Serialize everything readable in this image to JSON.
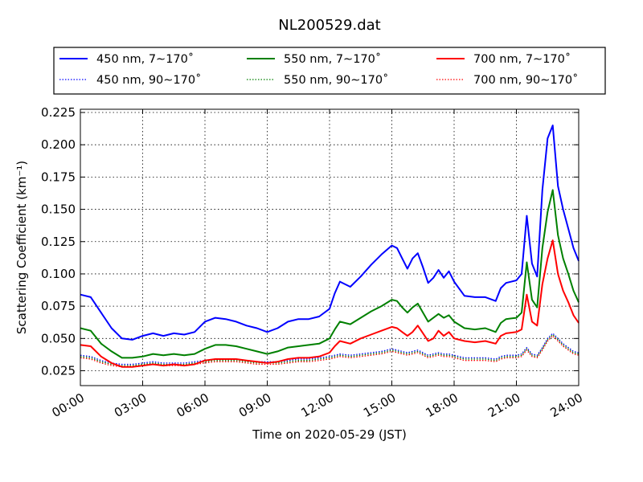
{
  "chart_data": {
    "type": "line",
    "title": "NL200529.dat",
    "xlabel": "Time on 2020-05-29 (JST)",
    "ylabel": "Scattering Coefficient (km⁻¹)",
    "x_unit": "hour",
    "xlim": [
      0,
      24
    ],
    "ylim": [
      0.0135,
      0.2275
    ],
    "x_ticks": [
      0,
      3,
      6,
      9,
      12,
      15,
      18,
      21,
      24
    ],
    "x_tick_labels": [
      "00:00",
      "03:00",
      "06:00",
      "09:00",
      "12:00",
      "15:00",
      "18:00",
      "21:00",
      "24:00"
    ],
    "y_ticks": [
      0.025,
      0.05,
      0.075,
      0.1,
      0.125,
      0.15,
      0.175,
      0.2,
      0.225
    ],
    "y_tick_labels": [
      "0.025",
      "0.050",
      "0.075",
      "0.100",
      "0.125",
      "0.150",
      "0.175",
      "0.200",
      "0.225"
    ],
    "grid": true,
    "legend_position": "top",
    "x": [
      0,
      0.5,
      1,
      1.5,
      2,
      2.5,
      3,
      3.5,
      4,
      4.5,
      5,
      5.5,
      6,
      6.5,
      7,
      7.5,
      8,
      8.5,
      9,
      9.5,
      10,
      10.5,
      11,
      11.5,
      12,
      12.25,
      12.5,
      13,
      13.5,
      14,
      14.5,
      15,
      15.25,
      15.5,
      15.75,
      16,
      16.25,
      16.5,
      16.75,
      17,
      17.25,
      17.5,
      17.75,
      18,
      18.5,
      19,
      19.5,
      20,
      20.25,
      20.5,
      21,
      21.25,
      21.5,
      21.75,
      22,
      22.25,
      22.5,
      22.75,
      23,
      23.25,
      23.5,
      23.75,
      24
    ],
    "series": [
      {
        "name": "450 nm, 7∼170˚",
        "color": "#0000ff",
        "style": "solid",
        "values": [
          0.084,
          0.082,
          0.07,
          0.058,
          0.05,
          0.049,
          0.052,
          0.054,
          0.052,
          0.054,
          0.053,
          0.055,
          0.063,
          0.066,
          0.065,
          0.063,
          0.06,
          0.058,
          0.055,
          0.058,
          0.063,
          0.065,
          0.065,
          0.067,
          0.073,
          0.085,
          0.094,
          0.09,
          0.098,
          0.107,
          0.115,
          0.122,
          0.12,
          0.112,
          0.104,
          0.112,
          0.116,
          0.105,
          0.093,
          0.097,
          0.103,
          0.097,
          0.102,
          0.094,
          0.083,
          0.082,
          0.082,
          0.079,
          0.089,
          0.093,
          0.095,
          0.1,
          0.145,
          0.108,
          0.098,
          0.165,
          0.205,
          0.215,
          0.168,
          0.15,
          0.135,
          0.12,
          0.11
        ]
      },
      {
        "name": "450 nm, 90∼170˚",
        "color": "#0000ff",
        "style": "dotted",
        "values": [
          0.037,
          0.036,
          0.033,
          0.031,
          0.03,
          0.03,
          0.031,
          0.032,
          0.031,
          0.031,
          0.031,
          0.032,
          0.033,
          0.034,
          0.034,
          0.034,
          0.033,
          0.032,
          0.032,
          0.032,
          0.033,
          0.034,
          0.034,
          0.035,
          0.036,
          0.037,
          0.038,
          0.037,
          0.038,
          0.039,
          0.04,
          0.042,
          0.041,
          0.04,
          0.039,
          0.04,
          0.041,
          0.039,
          0.037,
          0.038,
          0.039,
          0.038,
          0.038,
          0.037,
          0.035,
          0.035,
          0.035,
          0.034,
          0.036,
          0.037,
          0.037,
          0.038,
          0.043,
          0.038,
          0.037,
          0.043,
          0.05,
          0.054,
          0.05,
          0.046,
          0.043,
          0.04,
          0.039
        ]
      },
      {
        "name": "550 nm, 7∼170˚",
        "color": "#008000",
        "style": "solid",
        "values": [
          0.058,
          0.056,
          0.046,
          0.04,
          0.035,
          0.035,
          0.036,
          0.038,
          0.037,
          0.038,
          0.037,
          0.038,
          0.042,
          0.045,
          0.045,
          0.044,
          0.042,
          0.04,
          0.038,
          0.04,
          0.043,
          0.044,
          0.045,
          0.046,
          0.05,
          0.057,
          0.063,
          0.061,
          0.066,
          0.071,
          0.075,
          0.08,
          0.079,
          0.074,
          0.07,
          0.074,
          0.077,
          0.07,
          0.063,
          0.066,
          0.069,
          0.066,
          0.068,
          0.063,
          0.058,
          0.057,
          0.058,
          0.055,
          0.062,
          0.065,
          0.066,
          0.07,
          0.109,
          0.08,
          0.074,
          0.12,
          0.148,
          0.165,
          0.13,
          0.112,
          0.1,
          0.087,
          0.078
        ]
      },
      {
        "name": "550 nm, 90∼170˚",
        "color": "#008000",
        "style": "dotted",
        "values": [
          0.036,
          0.035,
          0.032,
          0.03,
          0.029,
          0.029,
          0.03,
          0.031,
          0.03,
          0.03,
          0.03,
          0.031,
          0.032,
          0.033,
          0.033,
          0.033,
          0.032,
          0.031,
          0.031,
          0.031,
          0.032,
          0.033,
          0.033,
          0.034,
          0.035,
          0.036,
          0.037,
          0.036,
          0.037,
          0.038,
          0.039,
          0.041,
          0.04,
          0.039,
          0.038,
          0.039,
          0.04,
          0.038,
          0.036,
          0.037,
          0.038,
          0.037,
          0.037,
          0.036,
          0.034,
          0.034,
          0.034,
          0.033,
          0.035,
          0.036,
          0.036,
          0.037,
          0.042,
          0.037,
          0.036,
          0.042,
          0.049,
          0.053,
          0.049,
          0.045,
          0.042,
          0.039,
          0.038
        ]
      },
      {
        "name": "700 nm, 7∼170˚",
        "color": "#ff0000",
        "style": "solid",
        "values": [
          0.045,
          0.044,
          0.036,
          0.031,
          0.028,
          0.028,
          0.029,
          0.03,
          0.029,
          0.03,
          0.029,
          0.03,
          0.033,
          0.034,
          0.034,
          0.034,
          0.033,
          0.032,
          0.031,
          0.032,
          0.034,
          0.035,
          0.035,
          0.036,
          0.039,
          0.044,
          0.048,
          0.046,
          0.05,
          0.053,
          0.056,
          0.059,
          0.058,
          0.055,
          0.052,
          0.055,
          0.06,
          0.054,
          0.048,
          0.05,
          0.056,
          0.052,
          0.055,
          0.05,
          0.048,
          0.047,
          0.048,
          0.046,
          0.052,
          0.054,
          0.055,
          0.057,
          0.084,
          0.063,
          0.06,
          0.092,
          0.112,
          0.126,
          0.1,
          0.087,
          0.078,
          0.068,
          0.062
        ]
      },
      {
        "name": "700 nm, 90∼170˚",
        "color": "#ff0000",
        "style": "dotted",
        "values": [
          0.035,
          0.034,
          0.031,
          0.029,
          0.028,
          0.028,
          0.029,
          0.03,
          0.029,
          0.029,
          0.029,
          0.03,
          0.031,
          0.032,
          0.032,
          0.032,
          0.031,
          0.03,
          0.03,
          0.03,
          0.031,
          0.032,
          0.032,
          0.033,
          0.034,
          0.035,
          0.036,
          0.035,
          0.036,
          0.037,
          0.038,
          0.04,
          0.039,
          0.038,
          0.037,
          0.038,
          0.039,
          0.037,
          0.035,
          0.036,
          0.037,
          0.036,
          0.036,
          0.035,
          0.033,
          0.033,
          0.033,
          0.032,
          0.034,
          0.035,
          0.035,
          0.036,
          0.041,
          0.036,
          0.035,
          0.041,
          0.048,
          0.052,
          0.048,
          0.044,
          0.041,
          0.038,
          0.037
        ]
      }
    ]
  }
}
